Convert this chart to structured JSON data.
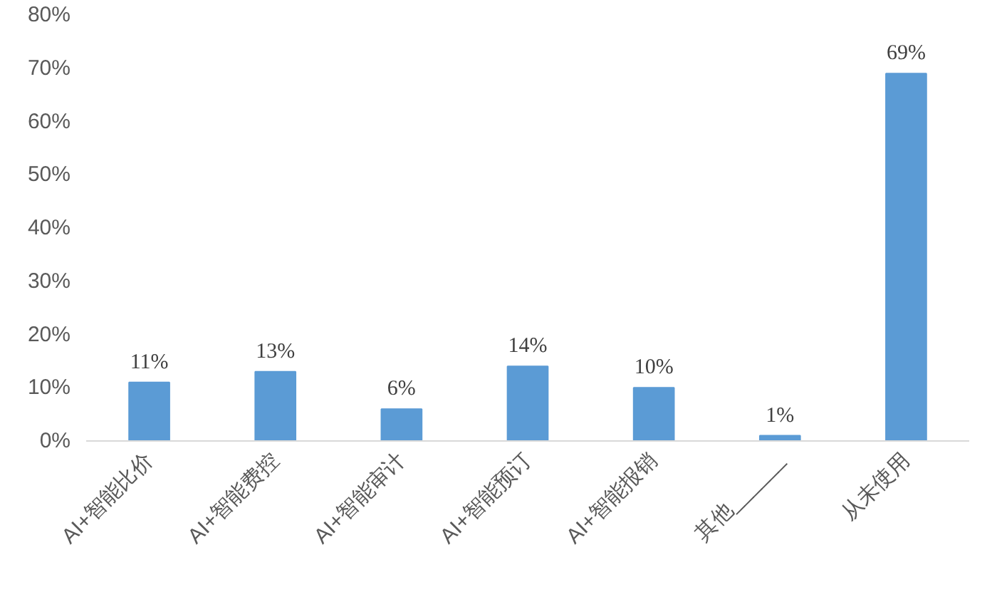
{
  "chart_data": {
    "type": "bar",
    "categories": [
      "AI+智能比价",
      "AI+智能费控",
      "AI+智能审计",
      "AI+智能预订",
      "AI+智能报销",
      "其他______",
      "从未使用"
    ],
    "values": [
      11,
      13,
      6,
      14,
      10,
      1,
      69
    ],
    "value_labels": [
      "11%",
      "13%",
      "6%",
      "14%",
      "10%",
      "1%",
      "69%"
    ],
    "color": "#5b9bd5",
    "ylim": [
      0,
      80
    ],
    "yticks": [
      {
        "value": 0,
        "label": "0%"
      },
      {
        "value": 10,
        "label": "10%"
      },
      {
        "value": 20,
        "label": "20%"
      },
      {
        "value": 30,
        "label": "30%"
      },
      {
        "value": 40,
        "label": "40%"
      },
      {
        "value": 50,
        "label": "50%"
      },
      {
        "value": 60,
        "label": "60%"
      },
      {
        "value": 70,
        "label": "70%"
      },
      {
        "value": 80,
        "label": "80%"
      }
    ],
    "grid": false
  }
}
